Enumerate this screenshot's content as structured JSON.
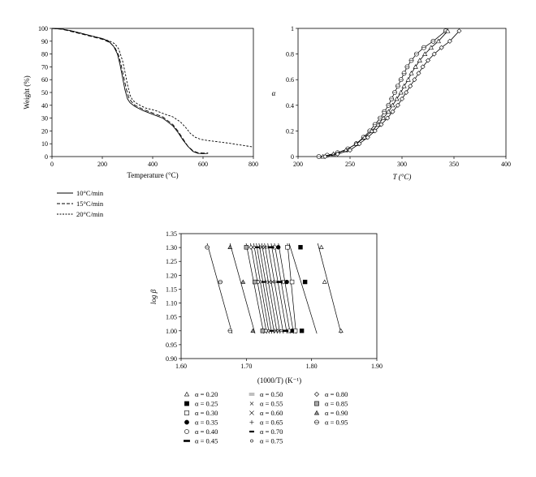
{
  "chart_data": [
    {
      "type": "line",
      "xlabel": "Temperature (°C)",
      "ylabel": "Weight (%)",
      "xlim": [
        0,
        800
      ],
      "ylim": [
        0,
        100
      ],
      "xticks": [
        "0",
        "200",
        "400",
        "600",
        "800"
      ],
      "yticks": [
        "0",
        "10",
        "20",
        "30",
        "40",
        "50",
        "60",
        "70",
        "80",
        "90",
        "100"
      ],
      "legend_position": "below",
      "series": [
        {
          "name": "10°C/min",
          "style": "solid",
          "x": [
            0,
            40,
            80,
            120,
            160,
            200,
            225,
            245,
            260,
            270,
            280,
            290,
            300,
            310,
            330,
            360,
            400,
            440,
            460,
            480,
            500,
            520,
            540,
            560,
            580,
            600,
            620
          ],
          "y": [
            100,
            99.5,
            98,
            96,
            94,
            92,
            90,
            86,
            80,
            72,
            62,
            52,
            45,
            42,
            39,
            36,
            33,
            30,
            27,
            24,
            19,
            13,
            8,
            4,
            2.5,
            2.3,
            2.5
          ]
        },
        {
          "name": "15°C/min",
          "style": "dash",
          "x": [
            0,
            40,
            80,
            120,
            160,
            200,
            230,
            250,
            265,
            275,
            285,
            295,
            305,
            315,
            330,
            360,
            400,
            440,
            460,
            480,
            500,
            520,
            540,
            560,
            580,
            600,
            620
          ],
          "y": [
            100,
            99.3,
            97.5,
            95.5,
            93.5,
            91.5,
            89,
            85,
            79,
            71,
            62,
            53,
            46,
            43,
            40,
            37,
            34,
            31,
            28,
            25,
            20,
            14,
            8,
            4.5,
            3,
            2.7,
            2.8
          ]
        },
        {
          "name": "20°C/min",
          "style": "dash-fine",
          "x": [
            0,
            40,
            80,
            120,
            160,
            200,
            230,
            250,
            265,
            280,
            290,
            300,
            310,
            320,
            340,
            370,
            410,
            450,
            480,
            510,
            530,
            550,
            570,
            590,
            620,
            660,
            700,
            750,
            800
          ],
          "y": [
            100,
            99.5,
            98,
            96,
            94,
            92,
            90,
            88,
            84,
            75,
            66,
            56,
            48,
            44,
            41,
            38,
            36,
            33,
            31,
            27,
            23,
            18,
            15,
            13.5,
            12.5,
            11.5,
            10.5,
            9,
            7.5
          ]
        }
      ]
    },
    {
      "type": "line",
      "xlabel": "T (°C)",
      "ylabel": "α",
      "xlim": [
        200,
        400
      ],
      "ylim": [
        0,
        1
      ],
      "xticks": [
        "200",
        "250",
        "300",
        "350",
        "400"
      ],
      "yticks": [
        "0",
        "0.2",
        "0.4",
        "0.6",
        "0.8",
        "1"
      ],
      "series": [
        {
          "marker": "hexagon",
          "x": [
            220,
            228,
            238,
            248,
            256,
            263,
            269,
            274,
            279,
            283,
            287,
            290,
            293,
            296,
            299,
            302,
            305,
            309,
            314,
            321,
            330,
            342
          ],
          "y": [
            0,
            0.01,
            0.03,
            0.06,
            0.1,
            0.15,
            0.2,
            0.25,
            0.3,
            0.35,
            0.4,
            0.45,
            0.5,
            0.55,
            0.6,
            0.65,
            0.7,
            0.75,
            0.8,
            0.85,
            0.9,
            0.98
          ]
        },
        {
          "marker": "triangle",
          "x": [
            224,
            234,
            246,
            256,
            264,
            271,
            277,
            282,
            287,
            291,
            295,
            299,
            302,
            306,
            309,
            313,
            317,
            322,
            328,
            335,
            344
          ],
          "y": [
            0,
            0.02,
            0.05,
            0.1,
            0.15,
            0.2,
            0.25,
            0.3,
            0.35,
            0.4,
            0.45,
            0.5,
            0.55,
            0.6,
            0.65,
            0.7,
            0.75,
            0.8,
            0.85,
            0.9,
            0.98
          ]
        },
        {
          "marker": "diamond",
          "x": [
            226,
            238,
            250,
            259,
            267,
            274,
            280,
            286,
            291,
            296,
            300,
            304,
            308,
            312,
            316,
            320,
            325,
            331,
            338,
            346,
            355
          ],
          "y": [
            0,
            0.02,
            0.05,
            0.1,
            0.15,
            0.2,
            0.25,
            0.3,
            0.35,
            0.4,
            0.45,
            0.5,
            0.55,
            0.6,
            0.65,
            0.7,
            0.75,
            0.8,
            0.85,
            0.9,
            0.98
          ]
        }
      ]
    },
    {
      "type": "scatter",
      "xlabel": "(1000/T) (K⁻¹)",
      "ylabel": "log β",
      "xlim": [
        1.6,
        1.9
      ],
      "ylim": [
        0.9,
        1.35
      ],
      "xticks": [
        "1.60",
        "1.70",
        "1.80",
        "1.90"
      ],
      "yticks": [
        "0.90",
        "0.95",
        "1.00",
        "1.05",
        "1.10",
        "1.15",
        "1.20",
        "1.25",
        "1.30",
        "1.35"
      ],
      "logbeta": [
        1.0,
        1.176,
        1.301
      ],
      "legend_position": "below",
      "series": [
        {
          "name": "α = 0.20",
          "marker": "triangle-open",
          "x": [
            1.845,
            1.82,
            1.815
          ]
        },
        {
          "name": "α = 0.25",
          "marker": "square-filled",
          "x": [
            1.785,
            1.79,
            1.783
          ]
        },
        {
          "name": "α = 0.30",
          "marker": "square-open",
          "x": [
            1.775,
            1.77,
            1.763
          ]
        },
        {
          "name": "α = 0.35",
          "marker": "circle-filled",
          "x": [
            1.77,
            1.762,
            1.749
          ]
        },
        {
          "name": "α = 0.40",
          "marker": "circle-open",
          "x": [
            1.765,
            1.756,
            1.743
          ]
        },
        {
          "name": "α = 0.45",
          "marker": "dash-thick",
          "x": [
            1.76,
            1.751,
            1.738
          ]
        },
        {
          "name": "α = 0.50",
          "marker": "dash-double",
          "x": [
            1.755,
            1.745,
            1.733
          ]
        },
        {
          "name": "α = 0.55",
          "marker": "x-small",
          "x": [
            1.75,
            1.74,
            1.728
          ]
        },
        {
          "name": "α = 0.60",
          "marker": "x",
          "x": [
            1.746,
            1.735,
            1.724
          ]
        },
        {
          "name": "α = 0.65",
          "marker": "plus",
          "x": [
            1.742,
            1.73,
            1.72
          ]
        },
        {
          "name": "α = 0.70",
          "marker": "dash",
          "x": [
            1.738,
            1.726,
            1.716
          ]
        },
        {
          "name": "α = 0.75",
          "marker": "dot-small",
          "x": [
            1.734,
            1.722,
            1.712
          ]
        },
        {
          "name": "α = 0.80",
          "marker": "diamond-open",
          "x": [
            1.73,
            1.718,
            1.707
          ]
        },
        {
          "name": "α = 0.85",
          "marker": "square-hatched",
          "x": [
            1.725,
            1.713,
            1.7
          ]
        },
        {
          "name": "α = 0.90",
          "marker": "triangle-shaded",
          "x": [
            1.71,
            1.695,
            1.675
          ]
        },
        {
          "name": "α = 0.95",
          "marker": "circle-hatched",
          "x": [
            1.675,
            1.66,
            1.64
          ]
        }
      ]
    }
  ]
}
